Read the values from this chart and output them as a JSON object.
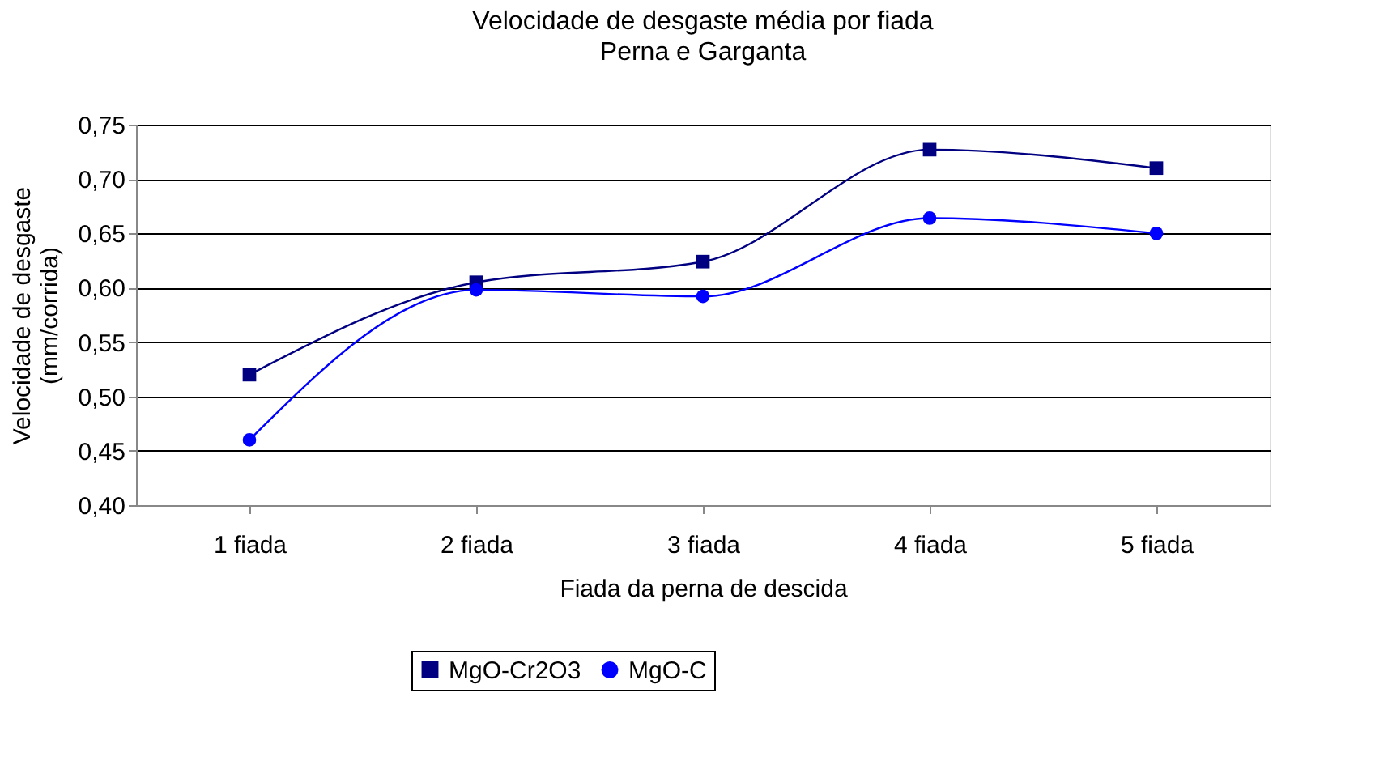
{
  "chart_data": {
    "type": "line",
    "title": "Velocidade de desgaste média por fiada",
    "subtitle": "Perna e Garganta",
    "xlabel": "Fiada da perna de descida",
    "ylabel": "Velocidade de desgaste\n(mm/corrida)",
    "categories": [
      "1 fiada",
      "2 fiada",
      "3 fiada",
      "4 fiada",
      "5 fiada"
    ],
    "series": [
      {
        "name": "MgO-Cr2O3",
        "color": "#000080",
        "marker": "square",
        "values": [
          0.52,
          0.605,
          0.624,
          0.727,
          0.71
        ]
      },
      {
        "name": "MgO-C",
        "color": "#0000ff",
        "marker": "circle",
        "values": [
          0.46,
          0.598,
          0.592,
          0.664,
          0.65
        ]
      }
    ],
    "ylim": [
      0.4,
      0.75
    ],
    "yticks": [
      {
        "value": 0.4,
        "label": "0,40"
      },
      {
        "value": 0.45,
        "label": "0,45"
      },
      {
        "value": 0.5,
        "label": "0,50"
      },
      {
        "value": 0.55,
        "label": "0,55"
      },
      {
        "value": 0.6,
        "label": "0,60"
      },
      {
        "value": 0.65,
        "label": "0,65"
      },
      {
        "value": 0.7,
        "label": "0,70"
      },
      {
        "value": 0.75,
        "label": "0,75"
      }
    ],
    "grid": "y",
    "legend": "bottom"
  }
}
